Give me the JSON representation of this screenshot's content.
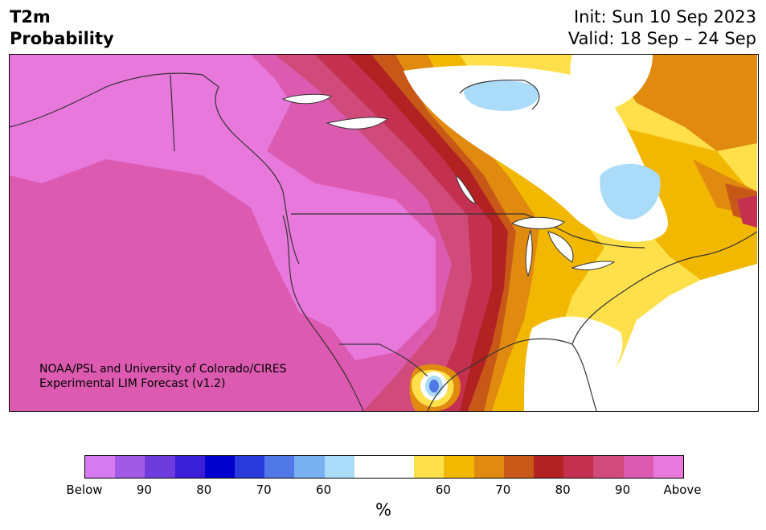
{
  "title": {
    "line1": "T2m",
    "line2": "Probability"
  },
  "dates": {
    "init": "Init: Sun 10 Sep 2023",
    "valid": "Valid: 18 Sep – 24 Sep"
  },
  "credit": {
    "line1": "NOAA/PSL and University of Colorado/CIRES",
    "line2": "Experimental LIM Forecast (v1.2)"
  },
  "colorbar": {
    "colors": [
      "#d67af0",
      "#a05ae6",
      "#6e3cdc",
      "#3a1ed8",
      "#0000cc",
      "#2a3adc",
      "#5078e6",
      "#78b0f0",
      "#aadcfa",
      "#ffffff",
      "#ffffff",
      "#ffe04a",
      "#f2b800",
      "#e08a10",
      "#c85818",
      "#b22222",
      "#c43050",
      "#d04a7a",
      "#dc5ab0",
      "#e878dc"
    ],
    "tick_labels": [
      "Below",
      "90",
      "80",
      "70",
      "60",
      "60",
      "70",
      "80",
      "90",
      "Above"
    ],
    "unit": "%"
  },
  "map": {
    "palette": {
      "pink": "#e878dc",
      "magenta_light": "#dc5ab0",
      "magenta": "#d04a7a",
      "rose": "#c43050",
      "red": "#b22222",
      "orange_dark": "#c85818",
      "orange": "#e08a10",
      "gold": "#f2b800",
      "yellow": "#ffe04a",
      "blue_light": "#aadcfa",
      "blue": "#78b0f0",
      "blue_mid": "#5078e6"
    }
  }
}
